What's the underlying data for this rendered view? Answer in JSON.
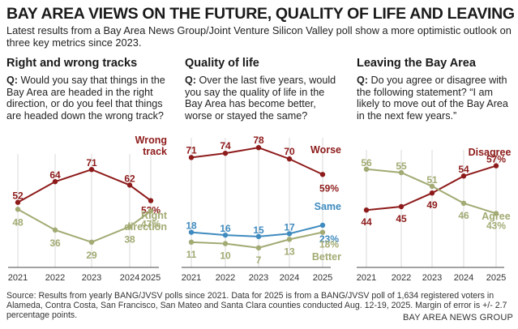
{
  "header": {
    "title": "BAY AREA VIEWS ON THE FUTURE, QUALITY OF LIFE AND LEAVING",
    "subtitle": "Latest results from a Bay Area News Group/Joint Venture Silicon Valley poll show a more optimistic outlook on three key metrics since 2023."
  },
  "colors": {
    "red": "#8e1b1b",
    "olive": "#a3aa73",
    "blue": "#3f8bbf",
    "grid": "#cfcfcf",
    "axis": "#444444"
  },
  "panels": [
    {
      "title": "Right and wrong tracks",
      "q_prefix": "Q:",
      "question": "Would you say that things in the Bay Area are headed in the right direction, or do you feel that things are headed down the wrong track?"
    },
    {
      "title": "Quality of life",
      "q_prefix": "Q:",
      "question": "Over the last five years, would you say the quality of life in the Bay Area has become better, worse or stayed the same?"
    },
    {
      "title": "Leaving the Bay Area",
      "q_prefix": "Q:",
      "question": "Do you agree or disagree with the following statement? “I am likely to move out of the Bay Area in the next few years.”"
    }
  ],
  "chart_data": [
    {
      "type": "line",
      "title": "Right and wrong tracks",
      "x": [
        "2021",
        "2022",
        "2023",
        "2024",
        "2025"
      ],
      "series": [
        {
          "name": "Wrong track",
          "name_lines": [
            "Wrong",
            "track"
          ],
          "color": "red",
          "values": [
            52,
            64,
            71,
            62,
            53
          ],
          "labels": [
            "52",
            "64",
            "71",
            "62",
            "53%"
          ]
        },
        {
          "name": "Right direction",
          "name_lines": [
            "Right",
            "direction"
          ],
          "color": "olive",
          "values": [
            48,
            36,
            29,
            38,
            47
          ],
          "labels": [
            "48",
            "36",
            "29",
            "38",
            "47%"
          ]
        }
      ],
      "ylim": [
        20,
        80
      ]
    },
    {
      "type": "line",
      "title": "Quality of life",
      "x": [
        "2021",
        "2022",
        "2023",
        "2024",
        "2025"
      ],
      "series": [
        {
          "name": "Worse",
          "name_lines": [
            "Worse"
          ],
          "color": "red",
          "values": [
            71,
            74,
            78,
            70,
            59
          ],
          "labels": [
            "71",
            "74",
            "78",
            "70",
            "59%"
          ]
        },
        {
          "name": "Same",
          "name_lines": [
            "Same"
          ],
          "color": "blue",
          "values": [
            18,
            16,
            15,
            17,
            23
          ],
          "labels": [
            "18",
            "16",
            "15",
            "17",
            "23%"
          ]
        },
        {
          "name": "Better",
          "name_lines": [
            "Better"
          ],
          "color": "olive",
          "values": [
            11,
            10,
            7,
            13,
            18
          ],
          "labels": [
            "11",
            "10",
            "7",
            "13",
            "18%"
          ]
        }
      ],
      "ylim": [
        0,
        85
      ]
    },
    {
      "type": "line",
      "title": "Leaving the Bay Area",
      "x": [
        "2021",
        "2022",
        "2023",
        "2024",
        "2025"
      ],
      "series": [
        {
          "name": "Disagree",
          "name_lines": [
            "Disagree"
          ],
          "color": "red",
          "values": [
            44,
            45,
            49,
            54,
            57
          ],
          "labels": [
            "44",
            "45",
            "49",
            "54",
            "57%"
          ]
        },
        {
          "name": "Agree",
          "name_lines": [
            "Agree"
          ],
          "color": "olive",
          "values": [
            56,
            55,
            51,
            46,
            43
          ],
          "labels": [
            "56",
            "55",
            "51",
            "46",
            "43%"
          ]
        }
      ],
      "ylim": [
        30,
        70
      ]
    }
  ],
  "footer": {
    "source": "Source: Results from yearly BANG/JVSV polls since 2021. Data for 2025 is from a BANG/JVSV poll of 1,634 registered voters in Alameda, Contra Costa, San Francisco, San Mateo and Santa Clara counties conducted Aug. 12-19, 2025. Margin of error is +/- 2.7 percentage points.",
    "credit": "BAY AREA NEWS GROUP"
  }
}
